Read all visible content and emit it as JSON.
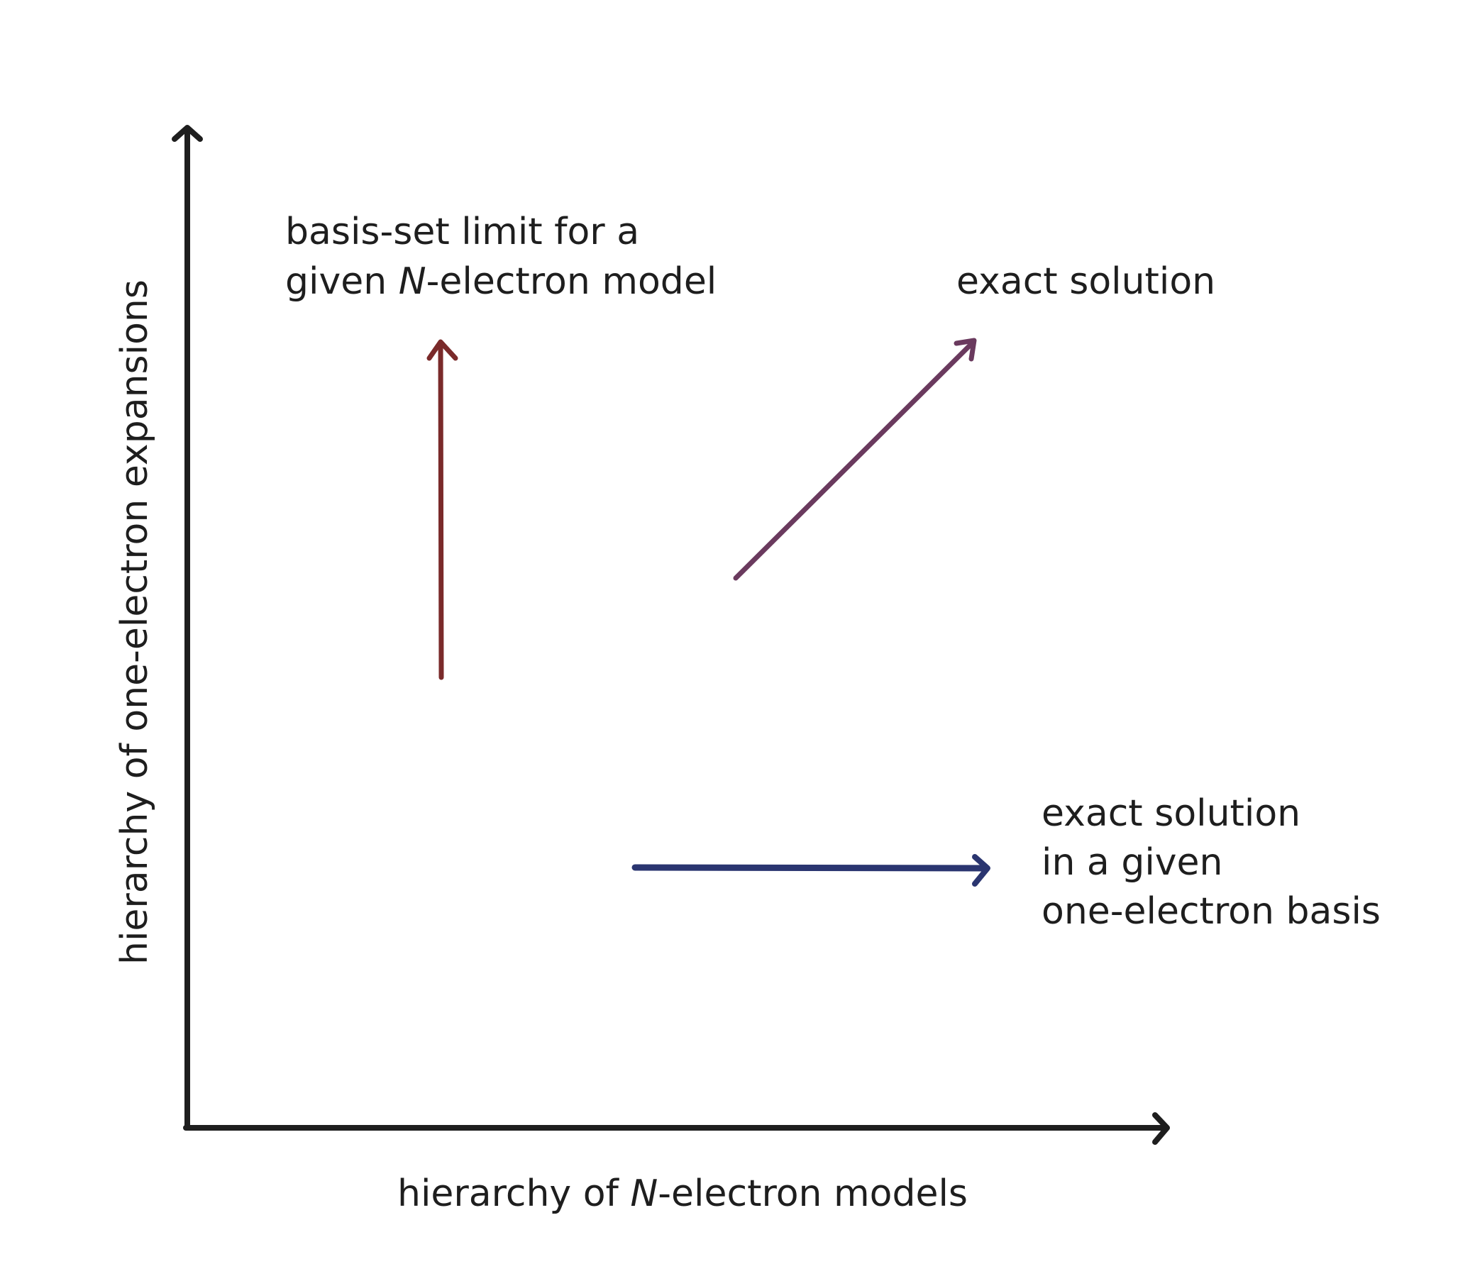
{
  "axes": {
    "x_label_prefix": "hierarchy of ",
    "x_label_italic": "N",
    "x_label_suffix": "-electron models",
    "y_label": "hierarchy of one-electron expansions",
    "color": "#1e1e1e"
  },
  "arrows": {
    "basis_limit": {
      "line1": "basis-set limit for a",
      "line2_prefix": "given ",
      "line2_italic": "N",
      "line2_suffix": "-electron model",
      "color": "#7a2a2a"
    },
    "exact_solution": {
      "label": "exact solution",
      "color": "#6a3a5e"
    },
    "exact_in_basis": {
      "line1": "exact solution",
      "line2": "in a given",
      "line3": "one-electron basis",
      "color": "#2a3570"
    }
  }
}
